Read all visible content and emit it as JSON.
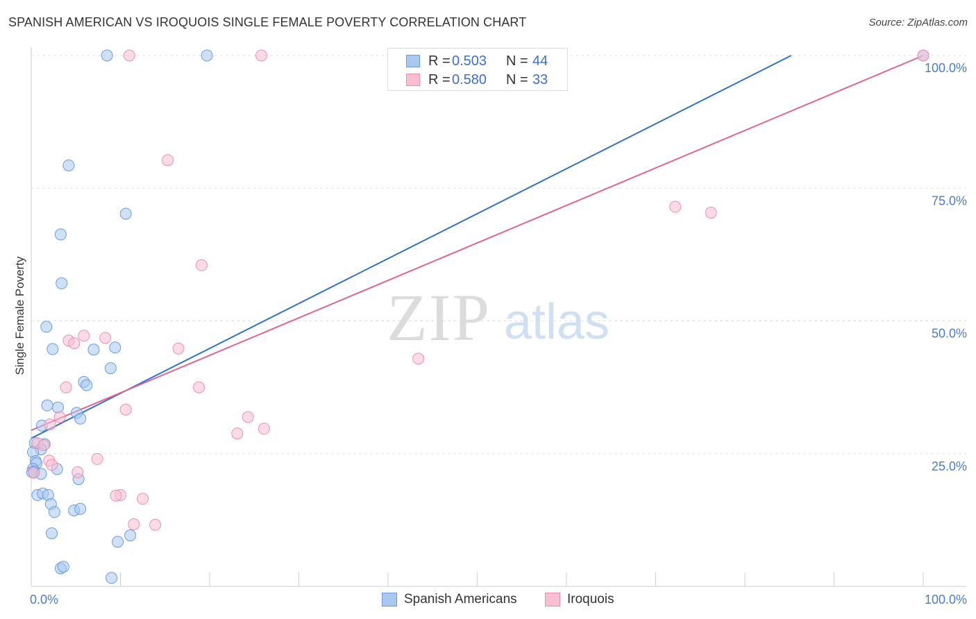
{
  "header": {
    "title": "SPANISH AMERICAN VS IROQUOIS SINGLE FEMALE POVERTY CORRELATION CHART",
    "source": "Source: ZipAtlas.com"
  },
  "watermark": {
    "zip": "ZIP",
    "atlas": "atlas"
  },
  "legend": {
    "rows": [
      {
        "r_label": "R =",
        "r_value": "0.503",
        "n_label": "N =",
        "n_value": "44"
      },
      {
        "r_label": "R =",
        "r_value": "0.580",
        "n_label": "N =",
        "n_value": "33"
      }
    ]
  },
  "bottom_legend": {
    "items": [
      {
        "label": "Spanish Americans"
      },
      {
        "label": "Iroquois"
      }
    ]
  },
  "chart_data": {
    "type": "scatter",
    "title": "SPANISH AMERICAN VS IROQUOIS SINGLE FEMALE POVERTY CORRELATION CHART",
    "xlabel": "",
    "ylabel": "Single Female Poverty",
    "xlim": [
      0,
      100
    ],
    "ylim": [
      0,
      100
    ],
    "x_tick_labels": [
      {
        "value": 0,
        "label": "0.0%"
      },
      {
        "value": 100,
        "label": "100.0%"
      }
    ],
    "y_tick_labels": [
      {
        "value": 25,
        "label": "25.0%"
      },
      {
        "value": 50,
        "label": "50.0%"
      },
      {
        "value": 75,
        "label": "75.0%"
      },
      {
        "value": 100,
        "label": "100.0%"
      }
    ],
    "colors": {
      "spanish_fill": "#a8c8f0",
      "spanish_stroke": "#6a9be0",
      "spanish_line": "#2f72c9",
      "iroquois_fill": "#f7bfd1",
      "iroquois_stroke": "#ec8fae",
      "iroquois_line": "#e0648f",
      "tick_text": "#4a7cc7"
    },
    "series": [
      {
        "name": "Spanish Americans",
        "r": 0.503,
        "n": 44,
        "trend": {
          "x0": 0,
          "y0": 27.9,
          "x1": 85.2,
          "y1": 100
        },
        "points": [
          [
            8.5,
            100
          ],
          [
            19.7,
            100
          ],
          [
            100,
            100
          ],
          [
            4.2,
            79.3
          ],
          [
            10.6,
            70.2
          ],
          [
            3.3,
            66.3
          ],
          [
            3.4,
            57.1
          ],
          [
            1.7,
            48.9
          ],
          [
            2.4,
            44.7
          ],
          [
            7.0,
            44.6
          ],
          [
            9.4,
            45.0
          ],
          [
            8.9,
            41.1
          ],
          [
            5.9,
            38.5
          ],
          [
            6.2,
            37.9
          ],
          [
            1.8,
            34.1
          ],
          [
            3.0,
            33.7
          ],
          [
            5.1,
            32.7
          ],
          [
            5.5,
            31.6
          ],
          [
            1.2,
            30.3
          ],
          [
            0.4,
            27.0
          ],
          [
            1.5,
            26.8
          ],
          [
            1.1,
            25.8
          ],
          [
            0.2,
            25.3
          ],
          [
            0.5,
            23.6
          ],
          [
            0.6,
            23.2
          ],
          [
            0.2,
            22.1
          ],
          [
            0.3,
            21.6
          ],
          [
            2.9,
            22.1
          ],
          [
            1.1,
            21.2
          ],
          [
            5.3,
            20.2
          ],
          [
            0.7,
            17.2
          ],
          [
            1.3,
            17.5
          ],
          [
            1.9,
            17.2
          ],
          [
            2.2,
            15.5
          ],
          [
            2.6,
            14.0
          ],
          [
            4.8,
            14.3
          ],
          [
            5.5,
            14.6
          ],
          [
            2.3,
            10.0
          ],
          [
            11.1,
            9.6
          ],
          [
            9.7,
            8.4
          ],
          [
            3.3,
            3.4
          ],
          [
            3.6,
            3.7
          ],
          [
            9.0,
            1.6
          ],
          [
            0.1,
            21.5
          ]
        ]
      },
      {
        "name": "Iroquois",
        "r": 0.58,
        "n": 33,
        "trend": {
          "x0": 0,
          "y0": 29.4,
          "x1": 100,
          "y1": 100
        },
        "points": [
          [
            11.0,
            100
          ],
          [
            25.8,
            100
          ],
          [
            100,
            100
          ],
          [
            15.3,
            80.3
          ],
          [
            72.2,
            71.5
          ],
          [
            76.2,
            70.4
          ],
          [
            19.1,
            60.5
          ],
          [
            5.9,
            47.2
          ],
          [
            4.2,
            46.3
          ],
          [
            4.8,
            45.8
          ],
          [
            8.3,
            46.8
          ],
          [
            16.5,
            44.8
          ],
          [
            43.4,
            42.9
          ],
          [
            3.9,
            37.5
          ],
          [
            18.8,
            37.5
          ],
          [
            10.6,
            33.3
          ],
          [
            24.3,
            31.9
          ],
          [
            3.2,
            31.9
          ],
          [
            2.1,
            30.5
          ],
          [
            26.1,
            29.7
          ],
          [
            23.1,
            28.8
          ],
          [
            0.7,
            27.0
          ],
          [
            1.4,
            26.6
          ],
          [
            2.0,
            23.7
          ],
          [
            7.4,
            24.0
          ],
          [
            2.3,
            22.9
          ],
          [
            5.2,
            21.5
          ],
          [
            0.3,
            21.4
          ],
          [
            10.0,
            17.2
          ],
          [
            9.5,
            17.1
          ],
          [
            12.5,
            16.5
          ],
          [
            11.5,
            11.7
          ],
          [
            13.9,
            11.6
          ]
        ]
      }
    ]
  }
}
